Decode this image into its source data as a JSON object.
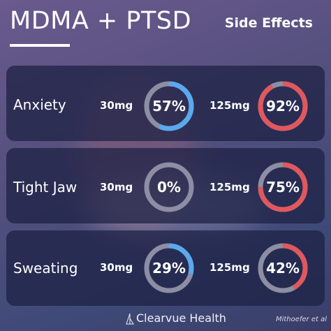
{
  "header": {
    "title": "MDMA + PTSD",
    "subtitle": "Side Effects"
  },
  "chart_data": {
    "type": "donut",
    "categories": [
      "Anxiety",
      "Tight Jaw",
      "Sweating"
    ],
    "doses": [
      "30mg",
      "125mg"
    ],
    "series": [
      {
        "name": "30mg",
        "values": [
          57,
          0,
          29
        ],
        "labels": [
          "57%",
          "0%",
          "29%"
        ],
        "color": "#5aa9ee"
      },
      {
        "name": "125mg",
        "values": [
          92,
          75,
          42
        ],
        "labels": [
          "92%",
          "75%",
          "42%"
        ],
        "color": "#e0585e"
      }
    ],
    "unit": "%",
    "max": 100
  },
  "colors": {
    "track": "#8d8ea3",
    "dose_30": "#5aa9ee",
    "dose_125": "#e0585e"
  },
  "footer": {
    "brand": "Clearvue Health",
    "brand_icon": "clearvue-logo-icon",
    "citation": "Mithoefer et al"
  }
}
